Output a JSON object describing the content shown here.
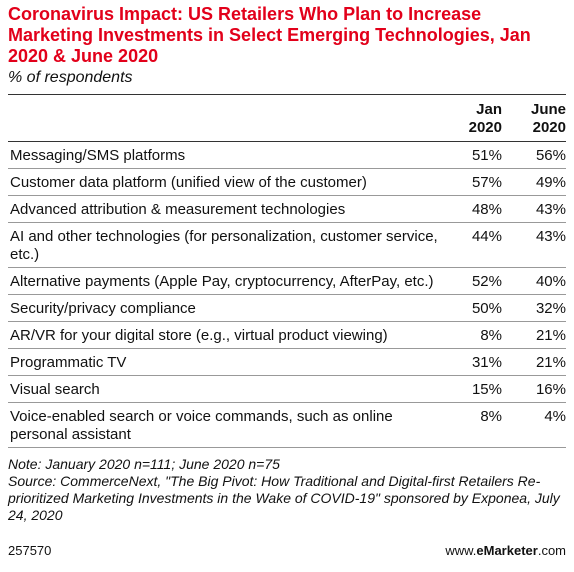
{
  "title": "Coronavirus Impact: US Retailers Who Plan to Increase Marketing Investments in Select Emerging Technologies, Jan 2020 & June 2020",
  "subtitle": "% of respondents",
  "columns": [
    "Jan 2020",
    "June 2020"
  ],
  "rows": [
    {
      "label": "Messaging/SMS platforms",
      "jan": "51%",
      "june": "56%"
    },
    {
      "label": "Customer data platform (unified view of the customer)",
      "jan": "57%",
      "june": "49%"
    },
    {
      "label": "Advanced attribution & measurement technologies",
      "jan": "48%",
      "june": "43%"
    },
    {
      "label": "AI and other technologies (for personalization, customer service, etc.)",
      "jan": "44%",
      "june": "43%"
    },
    {
      "label": "Alternative payments (Apple Pay, cryptocurrency, AfterPay, etc.)",
      "jan": "52%",
      "june": "40%"
    },
    {
      "label": "Security/privacy compliance",
      "jan": "50%",
      "june": "32%"
    },
    {
      "label": "AR/VR for your digital store (e.g., virtual product viewing)",
      "jan": "8%",
      "june": "21%"
    },
    {
      "label": "Programmatic TV",
      "jan": "31%",
      "june": "21%"
    },
    {
      "label": "Visual search",
      "jan": "15%",
      "june": "16%"
    },
    {
      "label": "Voice-enabled search or voice commands, such as online personal assistant",
      "jan": "8%",
      "june": "4%"
    }
  ],
  "note": "Note: January 2020 n=111; June 2020 n=75",
  "source": "Source: CommerceNext, \"The Big Pivot: How Traditional and Digital-first Retailers Re-prioritized Marketing Investments in the Wake of COVID-19\" sponsored by Exponea, July 24, 2020",
  "footer": {
    "id": "257570",
    "brand_prefix": "www.",
    "brand_bold": "eMarketer",
    "brand_suffix": ".com"
  },
  "colors": {
    "title": "#e2001a"
  },
  "chart_data": {
    "type": "table",
    "title": "Coronavirus Impact: US Retailers Who Plan to Increase Marketing Investments in Select Emerging Technologies, Jan 2020 & June 2020",
    "subtitle": "% of respondents",
    "categories": [
      "Messaging/SMS platforms",
      "Customer data platform (unified view of the customer)",
      "Advanced attribution & measurement technologies",
      "AI and other technologies (for personalization, customer service, etc.)",
      "Alternative payments (Apple Pay, cryptocurrency, AfterPay, etc.)",
      "Security/privacy compliance",
      "AR/VR for your digital store (e.g., virtual product viewing)",
      "Programmatic TV",
      "Visual search",
      "Voice-enabled search or voice commands, such as online personal assistant"
    ],
    "series": [
      {
        "name": "Jan 2020",
        "values": [
          51,
          57,
          48,
          44,
          52,
          50,
          8,
          31,
          15,
          8
        ]
      },
      {
        "name": "June 2020",
        "values": [
          56,
          49,
          43,
          43,
          40,
          32,
          21,
          21,
          16,
          4
        ]
      }
    ]
  }
}
